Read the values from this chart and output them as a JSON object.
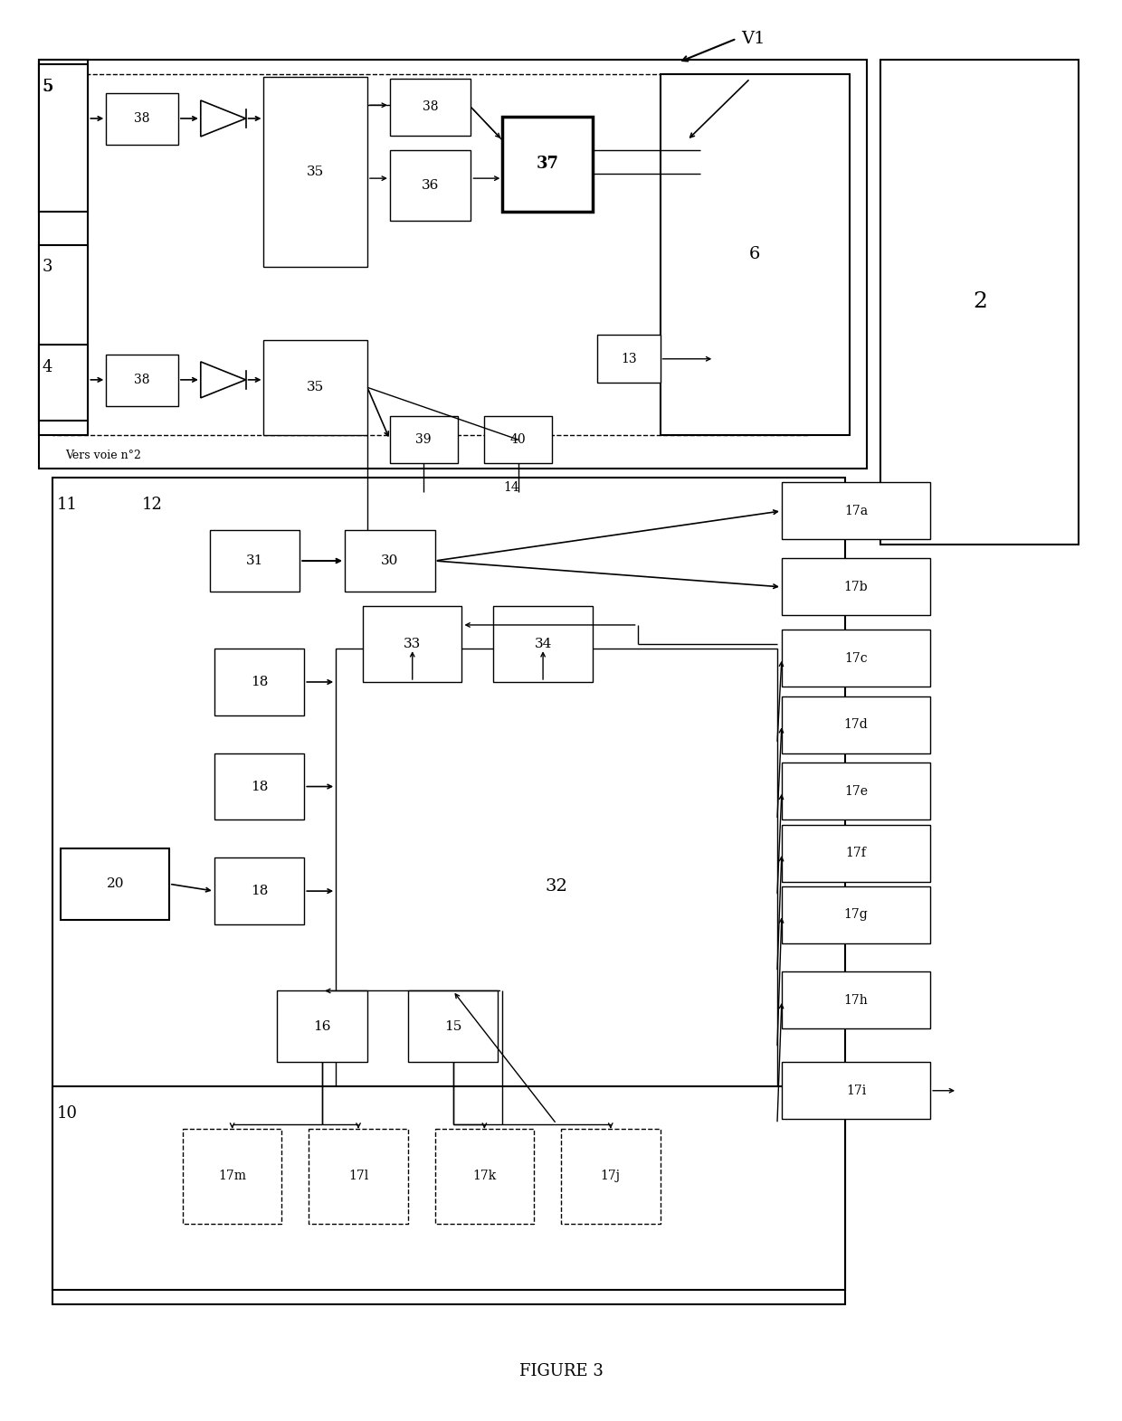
{
  "fig_width": 12.4,
  "fig_height": 15.71,
  "dpi": 100,
  "background": "#ffffff",
  "title": "FIGURE 3",
  "label_V1": "V1",
  "vers_voie": "Vers voie n°2"
}
